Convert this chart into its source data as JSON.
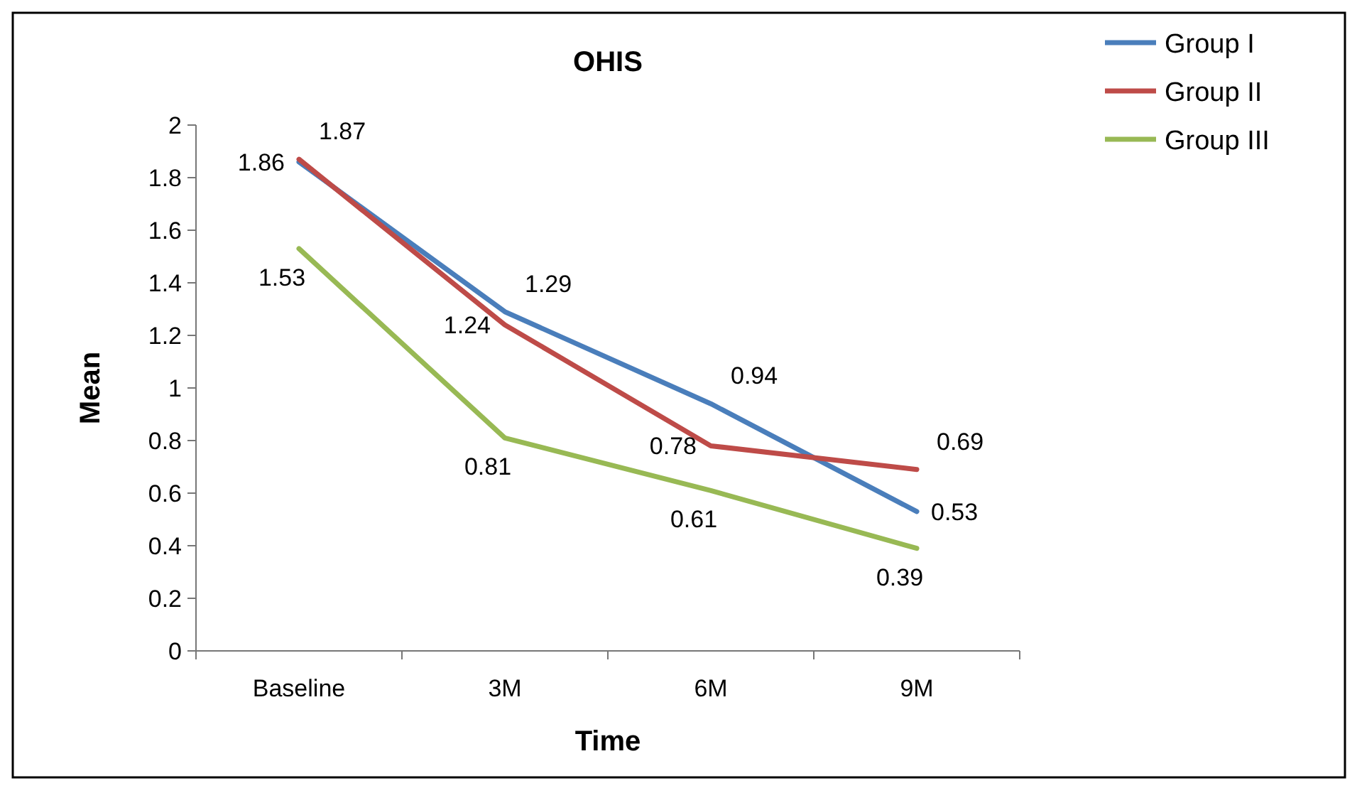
{
  "chart_data": {
    "type": "line",
    "title": "OHIS",
    "xlabel": "Time",
    "ylabel": "Mean",
    "categories": [
      "Baseline",
      "3M",
      "6M",
      "9M"
    ],
    "series": [
      {
        "name": "Group I",
        "color": "#4a7ebb",
        "values": [
          1.86,
          1.29,
          0.94,
          0.53
        ]
      },
      {
        "name": "Group II",
        "color": "#be4b48",
        "values": [
          1.87,
          1.24,
          0.78,
          0.69
        ]
      },
      {
        "name": "Group III",
        "color": "#98b954",
        "values": [
          1.53,
          0.81,
          0.61,
          0.39
        ]
      }
    ],
    "ylim": [
      0,
      2
    ],
    "yticks": [
      0,
      0.2,
      0.4,
      0.6,
      0.8,
      1,
      1.2,
      1.4,
      1.6,
      1.8,
      2
    ],
    "grid": false,
    "legend": "top right",
    "data_labels": true,
    "marker": "none",
    "line_style": "solid"
  }
}
